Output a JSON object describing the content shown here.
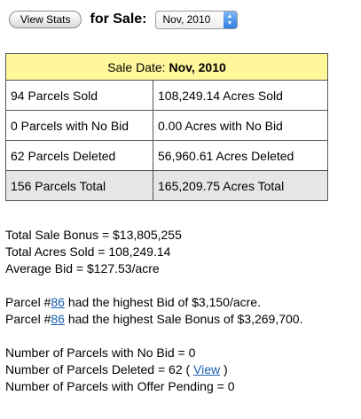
{
  "toolbar": {
    "view_stats_label": "View Stats",
    "for_sale_label": "for Sale:",
    "sale_select_value": "Nov, 2010"
  },
  "table": {
    "header_prefix": "Sale Date:",
    "header_date": "Nov, 2010",
    "rows": [
      {
        "left": "94 Parcels Sold",
        "right": "108,249.14 Acres Sold"
      },
      {
        "left": "0 Parcels with No Bid",
        "right": "0.00 Acres with No Bid"
      },
      {
        "left": "62 Parcels Deleted",
        "right": "56,960.61 Acres Deleted"
      },
      {
        "left": "156 Parcels Total",
        "right": "165,209.75 Acres Total"
      }
    ]
  },
  "summary": {
    "total_sale_bonus": "Total Sale Bonus = $13,805,255",
    "total_acres_sold": "Total Acres Sold = 108,249.14",
    "average_bid": "Average Bid = $127.53/acre",
    "highest_bid_prefix": "Parcel #",
    "highest_bid_parcel": "86",
    "highest_bid_suffix": " had the highest Bid of $3,150/acre.",
    "highest_bonus_prefix": "Parcel #",
    "highest_bonus_parcel": "86",
    "highest_bonus_suffix": " had the highest Sale Bonus of $3,269,700.",
    "no_bid": "Number of Parcels with No Bid = 0",
    "deleted_prefix": "Number of Parcels Deleted = 62 ( ",
    "deleted_view_link": "View",
    "deleted_suffix": " )",
    "offer_pending": "Number of Parcels with Offer Pending = 0"
  },
  "colors": {
    "header_bg": "#fff79a",
    "total_row_bg": "#e6e6e6",
    "link": "#1a5fb4",
    "select_arrow": "#2f7fe3"
  }
}
